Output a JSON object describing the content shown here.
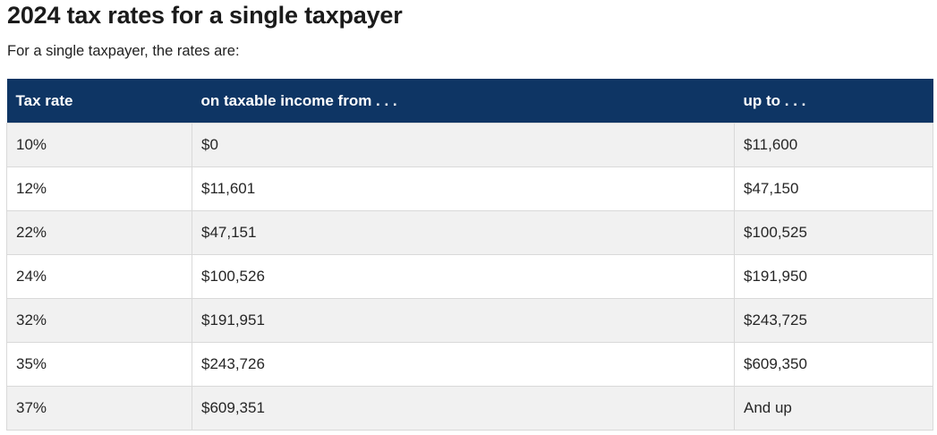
{
  "page": {
    "title": "2024 tax rates for a single taxpayer",
    "subtitle": "For a single taxpayer, the rates are:"
  },
  "table": {
    "columns": [
      "Tax rate",
      "on taxable income from . . .",
      "up to . . ."
    ],
    "rows": [
      {
        "rate": "10%",
        "from": "$0",
        "to": "$11,600"
      },
      {
        "rate": "12%",
        "from": "$11,601",
        "to": "$47,150"
      },
      {
        "rate": "22%",
        "from": "$47,151",
        "to": "$100,525"
      },
      {
        "rate": "24%",
        "from": "$100,526",
        "to": "$191,950"
      },
      {
        "rate": "32%",
        "from": "$191,951",
        "to": "$243,725"
      },
      {
        "rate": "35%",
        "from": "$243,726",
        "to": "$609,350"
      },
      {
        "rate": "37%",
        "from": "$609,351",
        "to": "And up"
      }
    ],
    "colors": {
      "header_bg": "#0e3564",
      "header_text": "#ffffff",
      "row_alt_bg": "#f1f1f1",
      "row_bg": "#ffffff",
      "border": "#d9d9d9",
      "cell_text": "#262626",
      "title_text": "#1b1b1b"
    }
  }
}
